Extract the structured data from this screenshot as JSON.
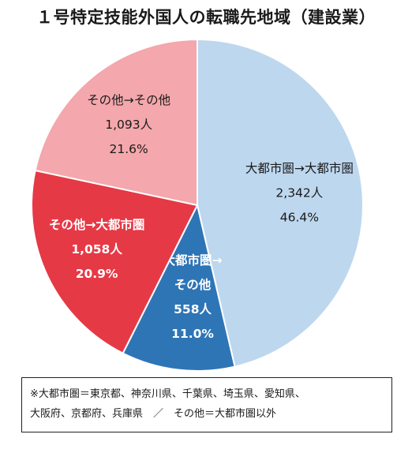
{
  "chart_data": {
    "type": "pie",
    "title": "１号特定技能外国人の転職先地域（建設業）",
    "unit": "人",
    "slices": [
      {
        "label_lines": [
          "大都市圏→大都市圏"
        ],
        "count": "2,342人",
        "percent": "46.4%",
        "value": 2342,
        "share": 46.4,
        "color": "#bdd7ee",
        "style": "normal"
      },
      {
        "label_lines": [
          "大都市圏→",
          "その他"
        ],
        "count": "558人",
        "percent": "11.0%",
        "value": 558,
        "share": 11.0,
        "color": "#2e75b6",
        "style": "bold"
      },
      {
        "label_lines": [
          "その他→大都市圏"
        ],
        "count": "1,058人",
        "percent": "20.9%",
        "value": 1058,
        "share": 20.9,
        "color": "#e63946",
        "style": "bold"
      },
      {
        "label_lines": [
          "その他→その他"
        ],
        "count": "1,093人",
        "percent": "21.6%",
        "value": 1093,
        "share": 21.6,
        "color": "#f4a7ac",
        "style": "normal"
      }
    ]
  },
  "note": {
    "line1": "※大都市圏＝東京都、神奈川県、千葉県、埼玉県、愛知県、",
    "line2": "大阪府、京都府、兵庫県　／　その他＝大都市圏以外"
  }
}
